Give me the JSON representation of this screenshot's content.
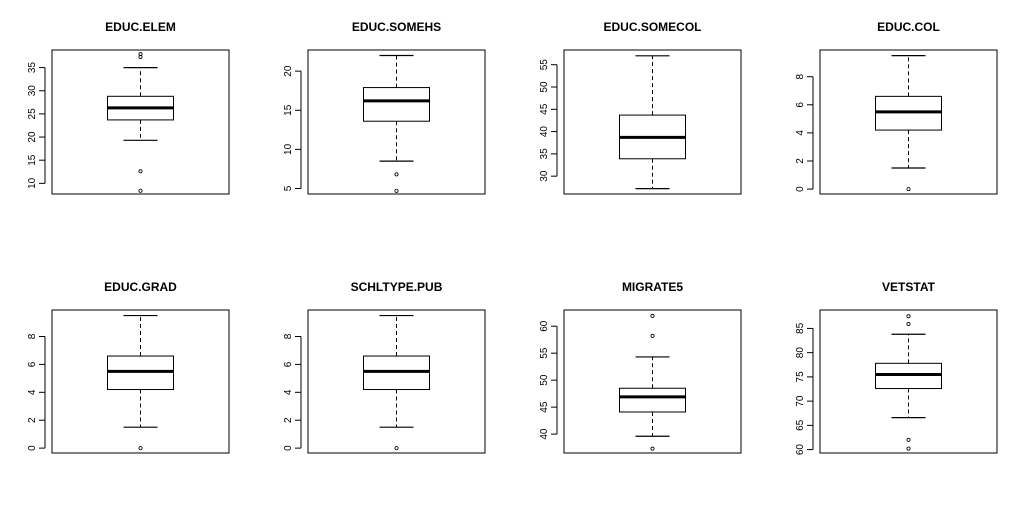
{
  "chart_data": [
    {
      "type": "box",
      "title": "EDUC.ELEM",
      "ylim": [
        7.7,
        38.8
      ],
      "ticks": [
        10,
        15,
        20,
        25,
        30,
        35
      ],
      "box": {
        "q1": 23.7,
        "median": 26.3,
        "q3": 28.8,
        "whisker_low": 19.3,
        "whisker_high": 35.0
      },
      "outliers": [
        8.4,
        12.6,
        37.3,
        37.9
      ]
    },
    {
      "type": "box",
      "title": "EDUC.SOMEHS",
      "ylim": [
        4.3,
        22.7
      ],
      "ticks": [
        5,
        10,
        15,
        20
      ],
      "box": {
        "q1": 13.6,
        "median": 16.2,
        "q3": 17.9,
        "whisker_low": 8.5,
        "whisker_high": 22.0
      },
      "outliers": [
        4.7,
        6.8
      ]
    },
    {
      "type": "box",
      "title": "EDUC.SOMECOL",
      "ylim": [
        26.0,
        58.3
      ],
      "ticks": [
        30,
        35,
        40,
        45,
        50,
        55
      ],
      "box": {
        "q1": 33.9,
        "median": 38.7,
        "q3": 43.7,
        "whisker_low": 27.2,
        "whisker_high": 57.0
      },
      "outliers": []
    },
    {
      "type": "box",
      "title": "EDUC.COL",
      "ylim": [
        -0.35,
        9.9
      ],
      "ticks": [
        0,
        2,
        4,
        6,
        8
      ],
      "box": {
        "q1": 4.2,
        "median": 5.5,
        "q3": 6.6,
        "whisker_low": 1.5,
        "whisker_high": 9.5
      },
      "outliers": [
        0.0
      ]
    },
    {
      "type": "box",
      "title": "EDUC.GRAD",
      "ylim": [
        -0.35,
        9.9
      ],
      "ticks": [
        0,
        2,
        4,
        6,
        8
      ],
      "box": {
        "q1": 4.2,
        "median": 5.5,
        "q3": 6.6,
        "whisker_low": 1.5,
        "whisker_high": 9.5
      },
      "outliers": [
        0.0
      ]
    },
    {
      "type": "box",
      "title": "SCHLTYPE.PUB",
      "ylim": [
        -0.35,
        9.9
      ],
      "ticks": [
        0,
        2,
        4,
        6,
        8
      ],
      "box": {
        "q1": 4.2,
        "median": 5.5,
        "q3": 6.6,
        "whisker_low": 1.5,
        "whisker_high": 9.5
      },
      "outliers": [
        0.0
      ]
    },
    {
      "type": "box",
      "title": "MIGRATE5",
      "ylim": [
        36.5,
        63.0
      ],
      "ticks": [
        40,
        45,
        50,
        55,
        60
      ],
      "box": {
        "q1": 44.1,
        "median": 46.9,
        "q3": 48.5,
        "whisker_low": 39.6,
        "whisker_high": 54.3
      },
      "outliers": [
        37.3,
        58.2,
        61.9
      ]
    },
    {
      "type": "box",
      "title": "VETSTAT",
      "ylim": [
        59.3,
        88.8
      ],
      "ticks": [
        60,
        65,
        70,
        75,
        80,
        85
      ],
      "box": {
        "q1": 72.6,
        "median": 75.5,
        "q3": 77.8,
        "whisker_low": 66.6,
        "whisker_high": 83.8
      },
      "outliers": [
        60.2,
        62.0,
        85.9,
        87.5
      ]
    }
  ]
}
